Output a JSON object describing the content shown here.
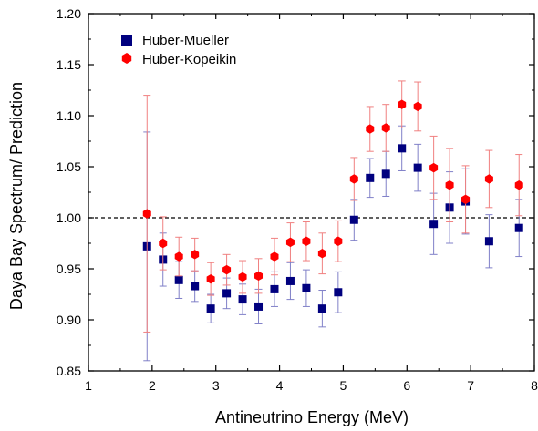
{
  "chart_data": {
    "type": "scatter",
    "xlabel": "Antineutrino Energy (MeV)",
    "ylabel": "Daya Bay Spectrum/ Prediction",
    "xlim": [
      1,
      8
    ],
    "ylim": [
      0.85,
      1.2
    ],
    "xticks": [
      1,
      2,
      3,
      4,
      5,
      6,
      7,
      8
    ],
    "yticks": [
      0.85,
      0.9,
      0.95,
      1.0,
      1.05,
      1.1,
      1.15,
      1.2
    ],
    "xtick_labels": [
      "1",
      "2",
      "3",
      "4",
      "5",
      "6",
      "7",
      "8"
    ],
    "ytick_labels": [
      "0.85",
      "0.90",
      "0.95",
      "1.00",
      "1.05",
      "1.10",
      "1.15",
      "1.20"
    ],
    "reference_line": {
      "y": 1.0,
      "style": "dashed"
    },
    "legend_position": "top-left",
    "grid": false,
    "series": [
      {
        "name": "Huber-Mueller",
        "marker": "square",
        "color": "#00007f",
        "errorbar_color": "#8080c8",
        "points": [
          {
            "x": 1.92,
            "y": 0.972,
            "err": 0.112
          },
          {
            "x": 2.17,
            "y": 0.959,
            "err": 0.026
          },
          {
            "x": 2.42,
            "y": 0.939,
            "err": 0.018
          },
          {
            "x": 2.67,
            "y": 0.933,
            "err": 0.015
          },
          {
            "x": 2.92,
            "y": 0.911,
            "err": 0.014
          },
          {
            "x": 3.17,
            "y": 0.926,
            "err": 0.015
          },
          {
            "x": 3.42,
            "y": 0.92,
            "err": 0.015
          },
          {
            "x": 3.67,
            "y": 0.913,
            "err": 0.017
          },
          {
            "x": 3.92,
            "y": 0.93,
            "err": 0.017
          },
          {
            "x": 4.17,
            "y": 0.938,
            "err": 0.018
          },
          {
            "x": 4.42,
            "y": 0.931,
            "err": 0.018
          },
          {
            "x": 4.67,
            "y": 0.911,
            "err": 0.018
          },
          {
            "x": 4.92,
            "y": 0.927,
            "err": 0.02
          },
          {
            "x": 5.17,
            "y": 0.998,
            "err": 0.02
          },
          {
            "x": 5.42,
            "y": 1.039,
            "err": 0.019
          },
          {
            "x": 5.67,
            "y": 1.043,
            "err": 0.022
          },
          {
            "x": 5.92,
            "y": 1.068,
            "err": 0.022
          },
          {
            "x": 6.17,
            "y": 1.049,
            "err": 0.023
          },
          {
            "x": 6.42,
            "y": 0.994,
            "err": 0.03
          },
          {
            "x": 6.67,
            "y": 1.01,
            "err": 0.035
          },
          {
            "x": 6.92,
            "y": 1.016,
            "err": 0.032
          },
          {
            "x": 7.29,
            "y": 0.977,
            "err": 0.026
          },
          {
            "x": 7.76,
            "y": 0.99,
            "err": 0.028
          }
        ]
      },
      {
        "name": "Huber-Kopeikin",
        "marker": "hexagon",
        "color": "#ff0000",
        "errorbar_color": "#f08080",
        "points": [
          {
            "x": 1.92,
            "y": 1.004,
            "err": 0.116
          },
          {
            "x": 2.17,
            "y": 0.975,
            "err": 0.026
          },
          {
            "x": 2.42,
            "y": 0.962,
            "err": 0.019
          },
          {
            "x": 2.67,
            "y": 0.964,
            "err": 0.016
          },
          {
            "x": 2.92,
            "y": 0.94,
            "err": 0.016
          },
          {
            "x": 3.17,
            "y": 0.949,
            "err": 0.015
          },
          {
            "x": 3.42,
            "y": 0.942,
            "err": 0.016
          },
          {
            "x": 3.67,
            "y": 0.943,
            "err": 0.017
          },
          {
            "x": 3.92,
            "y": 0.962,
            "err": 0.018
          },
          {
            "x": 4.17,
            "y": 0.976,
            "err": 0.019
          },
          {
            "x": 4.42,
            "y": 0.977,
            "err": 0.019
          },
          {
            "x": 4.67,
            "y": 0.965,
            "err": 0.02
          },
          {
            "x": 4.92,
            "y": 0.977,
            "err": 0.02
          },
          {
            "x": 5.17,
            "y": 1.038,
            "err": 0.021
          },
          {
            "x": 5.42,
            "y": 1.087,
            "err": 0.022
          },
          {
            "x": 5.67,
            "y": 1.088,
            "err": 0.023
          },
          {
            "x": 5.92,
            "y": 1.111,
            "err": 0.023
          },
          {
            "x": 6.17,
            "y": 1.109,
            "err": 0.024
          },
          {
            "x": 6.42,
            "y": 1.049,
            "err": 0.031
          },
          {
            "x": 6.67,
            "y": 1.032,
            "err": 0.036
          },
          {
            "x": 6.92,
            "y": 1.018,
            "err": 0.033
          },
          {
            "x": 7.29,
            "y": 1.038,
            "err": 0.028
          },
          {
            "x": 7.76,
            "y": 1.032,
            "err": 0.03
          }
        ]
      }
    ]
  }
}
